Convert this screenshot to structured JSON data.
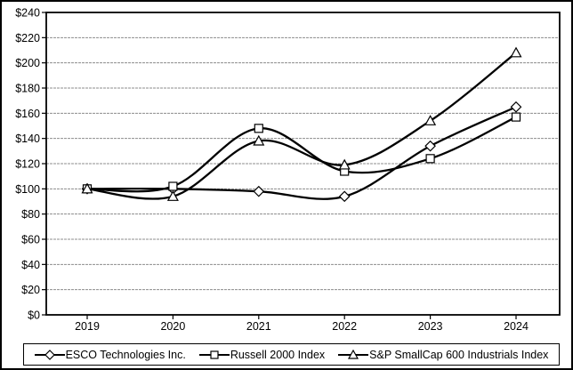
{
  "chart_data": {
    "type": "line",
    "smoothed": true,
    "categories": [
      "2019",
      "2020",
      "2021",
      "2022",
      "2023",
      "2024"
    ],
    "series": [
      {
        "name": "ESCO Technologies Inc.",
        "marker": "diamond",
        "values": [
          100,
          100,
          98,
          94,
          134,
          165
        ]
      },
      {
        "name": "Russell 2000 Index",
        "marker": "square",
        "values": [
          100,
          102,
          148,
          114,
          124,
          157
        ]
      },
      {
        "name": "S&P SmallCap 600 Industrials Index",
        "marker": "triangle",
        "values": [
          100,
          94,
          138,
          119,
          154,
          208
        ]
      }
    ],
    "title": "",
    "xlabel": "",
    "ylabel": "",
    "ylim": [
      0,
      240
    ],
    "y_tick_values": [
      0,
      20,
      40,
      60,
      80,
      100,
      120,
      140,
      160,
      180,
      200,
      220,
      240
    ],
    "y_tick_labels": [
      "$0",
      "$20",
      "$40",
      "$60",
      "$80",
      "$100",
      "$120",
      "$140",
      "$160",
      "$180",
      "$200",
      "$220",
      "$240"
    ],
    "grid": "horizontal",
    "legend_position": "bottom",
    "colors": {
      "line": "#000000",
      "marker_fill": "#ffffff",
      "gridline": "#8c8c8c",
      "axis": "#000000",
      "background": "#ffffff"
    }
  }
}
